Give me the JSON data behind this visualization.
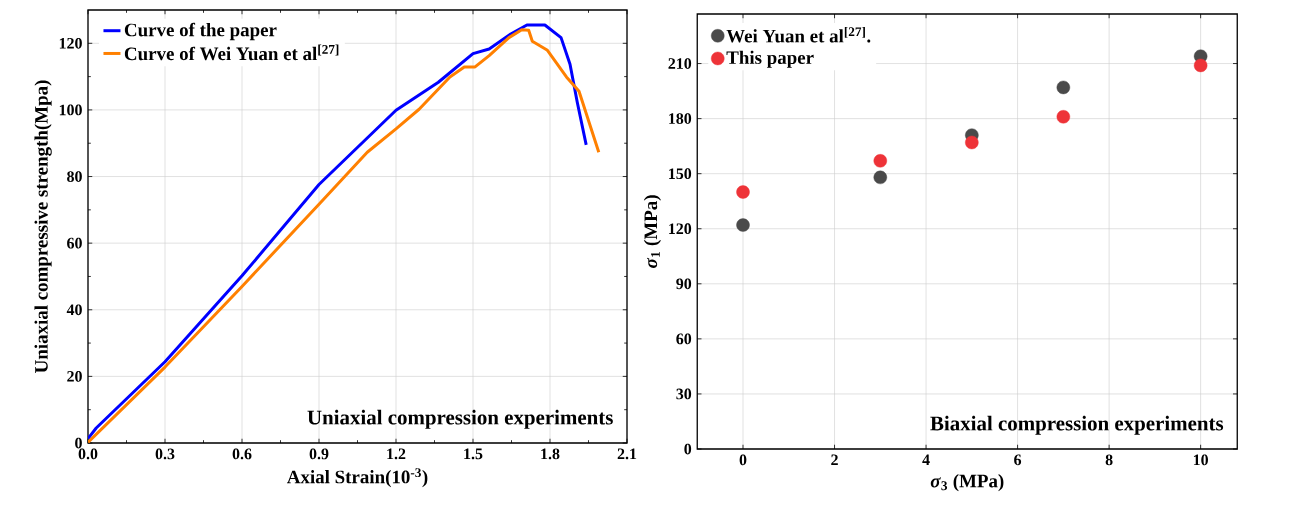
{
  "chart_data": [
    {
      "type": "line",
      "xlabel": "Axial Strain(10$^{-3}$)",
      "ylabel": "Uniaxial compressive strength(Mpa)",
      "xlim": [
        0,
        2.1
      ],
      "ylim": [
        0,
        130
      ],
      "xticks": [
        {
          "value": 0,
          "label": "0.0"
        },
        0.3,
        0.6,
        0.9,
        1.2,
        1.5,
        1.8,
        2.1
      ],
      "yticks": [
        0,
        20,
        40,
        60,
        80,
        100,
        120
      ],
      "grid": true,
      "legend": "top left",
      "line_style": "solid",
      "annotations": [
        "Uniaxial compression experiments"
      ],
      "series": [
        {
          "name": "Curve of the paper",
          "color": "#0000ff",
          "x": [
            0,
            0.032,
            0.3,
            0.6,
            0.9,
            1.2,
            1.365,
            1.5,
            1.563,
            1.647,
            1.71,
            1.78,
            1.843,
            1.878,
            1.906,
            1.941
          ],
          "values": [
            1.3,
            4.5,
            24.4,
            50.2,
            77.6,
            99.9,
            108.3,
            116.9,
            118.3,
            122.8,
            125.5,
            125.5,
            121.7,
            113.7,
            102.4,
            89.5
          ]
        },
        {
          "name": "Curve of Wei Yuan et al$^{[27]}$",
          "color": "#ff8000",
          "x": [
            0,
            0.3,
            0.6,
            0.9,
            1.088,
            1.2,
            1.29,
            1.41,
            1.466,
            1.508,
            1.563,
            1.64,
            1.69,
            1.717,
            1.731,
            1.79,
            1.864,
            1.913,
            1.99
          ],
          "values": [
            0.2,
            22.8,
            47,
            71.7,
            87.3,
            94.3,
            100.2,
            109.9,
            112.9,
            112.9,
            116.3,
            121.7,
            124.1,
            123.9,
            120.6,
            117.9,
            109.9,
            105.6,
            87.3
          ]
        }
      ]
    },
    {
      "type": "scatter",
      "xlabel": "*σ*$_{3}$ (MPa)",
      "ylabel": "*σ*$_{1}$ (MPa)",
      "xlim": [
        -1,
        10.8
      ],
      "ylim": [
        0,
        237
      ],
      "xticks": [
        0,
        2,
        4,
        6,
        8,
        10
      ],
      "yticks": [
        0,
        30,
        60,
        90,
        120,
        150,
        180,
        210
      ],
      "grid": true,
      "legend": "top left",
      "marker": "circle",
      "annotations": [
        "Biaxial compression experiments"
      ],
      "series": [
        {
          "name": "Wei Yuan et al$^{[27]}$.",
          "color": "#4a4a4a",
          "x": [
            0,
            3,
            5,
            7,
            10
          ],
          "values": [
            122,
            148,
            171,
            197,
            214
          ]
        },
        {
          "name": "This paper",
          "color": "#ee3338",
          "x": [
            0,
            3,
            5,
            7,
            10
          ],
          "values": [
            140,
            157,
            167,
            181,
            209
          ]
        }
      ]
    }
  ]
}
